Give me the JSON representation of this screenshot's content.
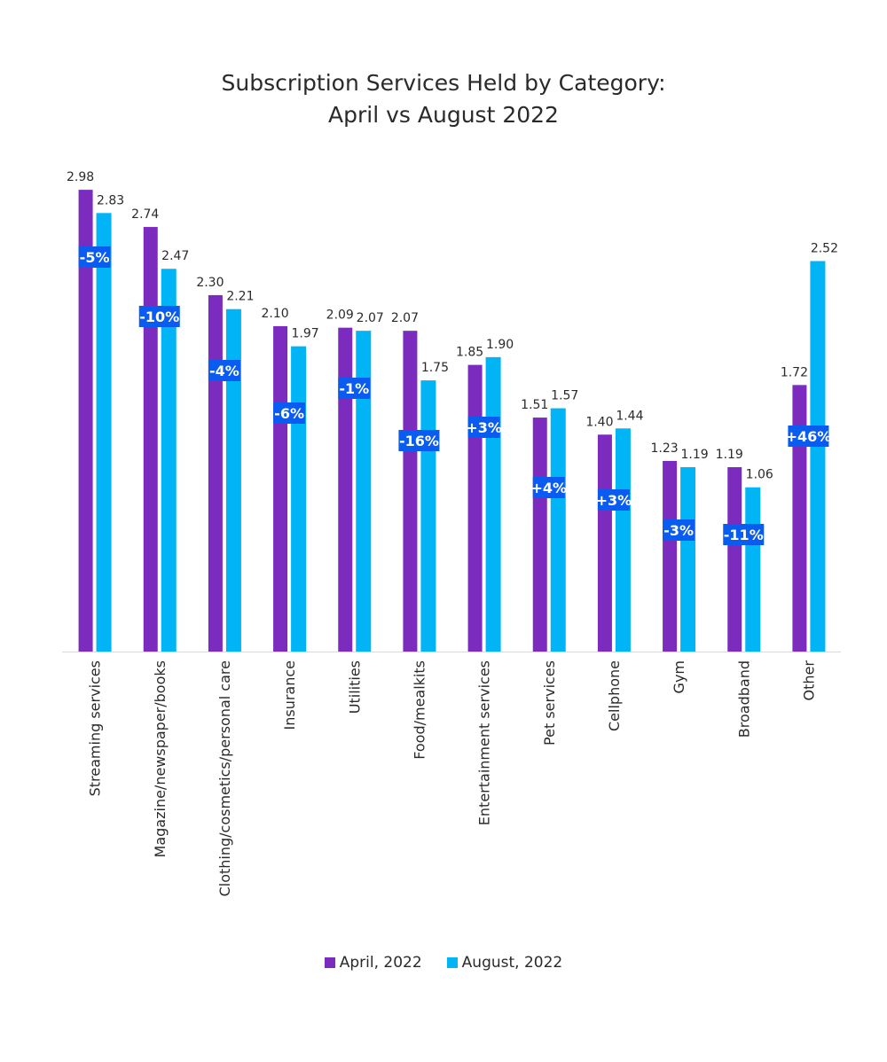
{
  "chart_data": {
    "type": "bar",
    "title": [
      "Subscription Services Held by Category:",
      "April vs August 2022"
    ],
    "xlabel": "",
    "ylabel": "",
    "ylim": [
      0,
      3.0
    ],
    "grid": false,
    "legend_position": "bottom",
    "categories": [
      "Streaming services",
      "Magazine/newspaper/books",
      "Clothing/cosmetics/personal care",
      "Insurance",
      "Utilities",
      "Food/mealkits",
      "Entertainment services",
      "Pet services",
      "Cellphone",
      "Gym",
      "Broadband",
      "Other"
    ],
    "series": [
      {
        "name": "April, 2022",
        "color": "#7b2cbf",
        "values": [
          2.98,
          2.74,
          2.3,
          2.1,
          2.09,
          2.07,
          1.85,
          1.51,
          1.4,
          1.23,
          1.19,
          1.72
        ],
        "labels": [
          "2.98",
          "2.74",
          "2.30",
          "2.10",
          "2.09",
          "2.07",
          "1.85",
          "1.51",
          "1.40",
          "1.23",
          "1.19",
          "1.72"
        ]
      },
      {
        "name": "August, 2022",
        "color": "#00b4f5",
        "values": [
          2.83,
          2.47,
          2.21,
          1.97,
          2.07,
          1.75,
          1.9,
          1.57,
          1.44,
          1.19,
          1.06,
          2.52
        ],
        "labels": [
          "2.83",
          "2.47",
          "2.21",
          "1.97",
          "2.07",
          "1.75",
          "1.90",
          "1.57",
          "1.44",
          "1.19",
          "1.06",
          "2.52"
        ]
      }
    ],
    "annotations": [
      "-5%",
      "-10%",
      "-4%",
      "-6%",
      "-1%",
      "-16%",
      "+3%",
      "+4%",
      "+3%",
      "-3%",
      "-11%",
      "+46%"
    ],
    "annotation_color": "#0a5cf0"
  }
}
